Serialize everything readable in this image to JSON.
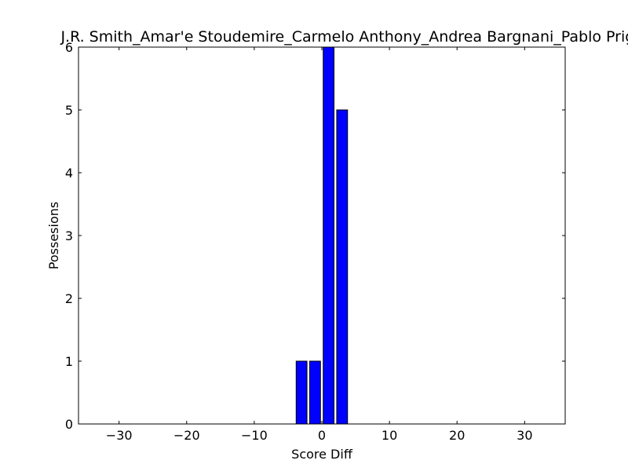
{
  "colors": {
    "bar_fill": "#0000ff",
    "bar_edge": "#000000",
    "axes": "#000000",
    "background": "#ffffff"
  },
  "chart_data": {
    "type": "bar",
    "title": "J.R. Smith_Amar'e Stoudemire_Carmelo Anthony_Andrea Bargnani_Pablo Prigioni",
    "xlabel": "Score Diff",
    "ylabel": "Possesions",
    "xlim": [
      -36,
      36
    ],
    "ylim": [
      0,
      6
    ],
    "xticks": [
      -30,
      -20,
      -10,
      0,
      10,
      20,
      30
    ],
    "xtick_labels": [
      "−30",
      "−20",
      "−10",
      "0",
      "10",
      "20",
      "30"
    ],
    "yticks": [
      0,
      1,
      2,
      3,
      4,
      5,
      6
    ],
    "ytick_labels": [
      "0",
      "1",
      "2",
      "3",
      "4",
      "5",
      "6"
    ],
    "bar_width": 1.6,
    "grid": false,
    "x": [
      -35,
      -34,
      -33,
      -32,
      -31,
      -30,
      -29,
      -28,
      -27,
      -26,
      -25,
      -24,
      -23,
      -22,
      -21,
      -20,
      -19,
      -18,
      -17,
      -16,
      -15,
      -14,
      -13,
      -12,
      -11,
      -10,
      -9,
      -8,
      -7,
      -6,
      -5,
      -4,
      -3,
      -2,
      -1,
      0,
      1,
      2,
      3,
      4,
      5,
      6,
      7,
      8,
      9,
      10,
      11,
      12,
      13,
      14,
      15,
      16,
      17,
      18,
      19,
      20,
      21,
      22,
      23,
      24,
      25,
      26,
      27,
      28,
      29,
      30,
      31,
      32,
      33,
      34,
      35
    ],
    "values": [
      0,
      0,
      0,
      0,
      0,
      0,
      0,
      0,
      0,
      0,
      0,
      0,
      0,
      0,
      0,
      0,
      0,
      0,
      0,
      0,
      0,
      0,
      0,
      0,
      0,
      0,
      0,
      0,
      0,
      0,
      0,
      0,
      1,
      0,
      1,
      0,
      6,
      0,
      5,
      0,
      0,
      0,
      0,
      0,
      0,
      0,
      0,
      0,
      0,
      0,
      0,
      0,
      0,
      0,
      0,
      0,
      0,
      0,
      0,
      0,
      0,
      0,
      0,
      0,
      0,
      0,
      0,
      0,
      0,
      0,
      0
    ]
  }
}
